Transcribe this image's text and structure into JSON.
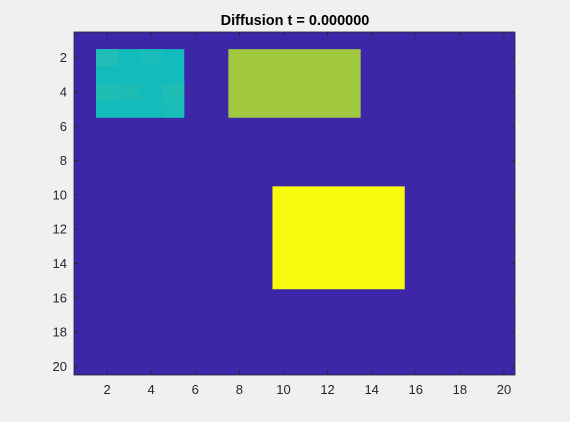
{
  "chart_data": {
    "type": "heatmap",
    "title": "Diffusion t = 0.000000",
    "xlabel": "",
    "ylabel": "",
    "xlim": [
      0.5,
      20.5
    ],
    "ylim": [
      0.5,
      20.5
    ],
    "y_reversed": true,
    "xticks": [
      2,
      4,
      6,
      8,
      10,
      12,
      14,
      16,
      18,
      20
    ],
    "yticks": [
      2,
      4,
      6,
      8,
      10,
      12,
      14,
      16,
      18,
      20
    ],
    "grid": false,
    "colormap": "parula",
    "clim": [
      0,
      1
    ],
    "background_value": 0,
    "blocks": [
      {
        "rows": [
          2,
          5
        ],
        "cols": [
          2,
          5
        ],
        "value": 0.5,
        "color": "#12bcbc",
        "variations": [
          {
            "row": 2,
            "col": 2,
            "color": "#22bdb6"
          },
          {
            "row": 4,
            "col": 2,
            "color": "#1fbdb3"
          },
          {
            "row": 4,
            "col": 3,
            "color": "#1cbcb5"
          },
          {
            "row": 2,
            "col": 4,
            "color": "#18bcb8"
          },
          {
            "row": 4,
            "col": 5,
            "color": "#20bdb4"
          },
          {
            "row": 5,
            "col": 5,
            "color": "#19bcb7"
          }
        ]
      },
      {
        "rows": [
          2,
          5
        ],
        "cols": [
          8,
          13
        ],
        "value": 0.75,
        "color": "#a0c940"
      },
      {
        "rows": [
          10,
          15
        ],
        "cols": [
          10,
          15
        ],
        "value": 1.0,
        "color": "#f9fb0e"
      }
    ],
    "colors": {
      "background": "#3e26a8",
      "figure": "#f0f0f0",
      "axis": "#262626"
    }
  }
}
